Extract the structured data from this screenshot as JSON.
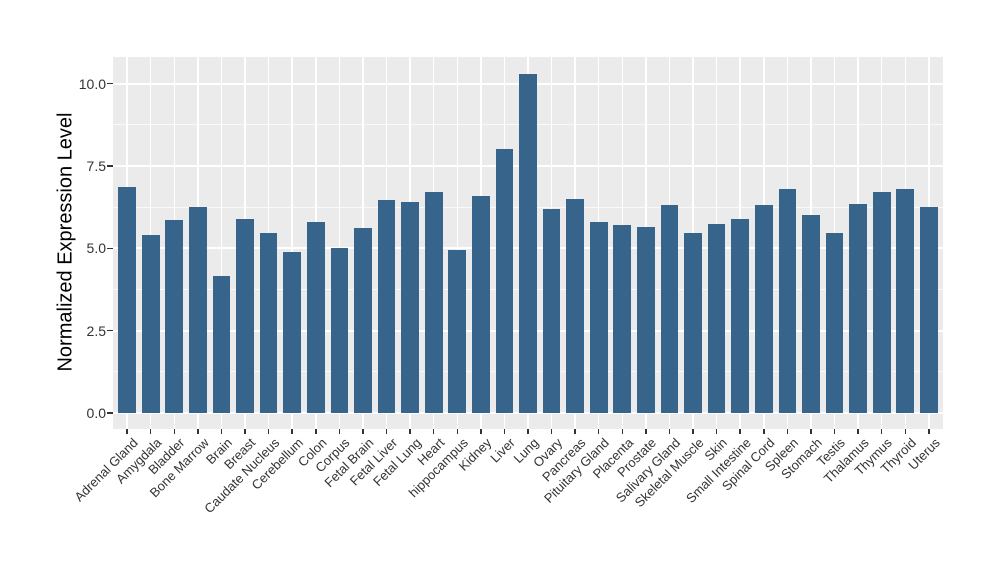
{
  "figure": {
    "background": "#ffffff",
    "panel_background": "#ebebeb",
    "grid_color": "#ffffff",
    "bar_color": "#36648b",
    "axis_text_color": "#333333",
    "axis_title_color": "#000000"
  },
  "chart_data": {
    "type": "bar",
    "title": "",
    "xlabel": "",
    "ylabel": "Normalized Expression Level",
    "legend": "none",
    "grid": true,
    "ylim": [
      0,
      10.8
    ],
    "yticks": [
      0,
      2.5,
      5,
      7.5,
      10
    ],
    "ytick_labels": [
      "0.0",
      "2.5",
      "5.0",
      "7.5",
      "10.0"
    ],
    "yminor_ticks": [
      1.25,
      3.75,
      6.25,
      8.75
    ],
    "categories": [
      "Adrenal Gland",
      "Amygdala",
      "Bladder",
      "Bone Marrow",
      "Brain",
      "Breast",
      "Caudate Nucleus",
      "Cerebellum",
      "Colon",
      "Corpus",
      "Fetal Brain",
      "Fetal Liver",
      "Fetal Lung",
      "Heart",
      "hippocampus",
      "Kidney",
      "Liver",
      "Lung",
      "Ovary",
      "Pancreas",
      "Pituitary Gland",
      "Placenta",
      "Prostate",
      "Salivary Gland",
      "Skeletal Muscle",
      "Skin",
      "Small Intestine",
      "Spinal Cord",
      "Spleen",
      "Stomach",
      "Testis",
      "Thalamus",
      "Thymus",
      "Thyroid",
      "Uterus"
    ],
    "values": [
      6.85,
      5.4,
      5.85,
      6.25,
      4.15,
      5.9,
      5.45,
      4.9,
      5.8,
      5.0,
      5.6,
      6.45,
      6.4,
      6.7,
      4.95,
      6.6,
      8.0,
      10.28,
      6.2,
      6.5,
      5.8,
      5.7,
      5.65,
      6.3,
      5.45,
      5.75,
      5.9,
      6.3,
      6.8,
      6.0,
      5.45,
      6.35,
      6.7,
      6.8,
      6.25
    ]
  }
}
